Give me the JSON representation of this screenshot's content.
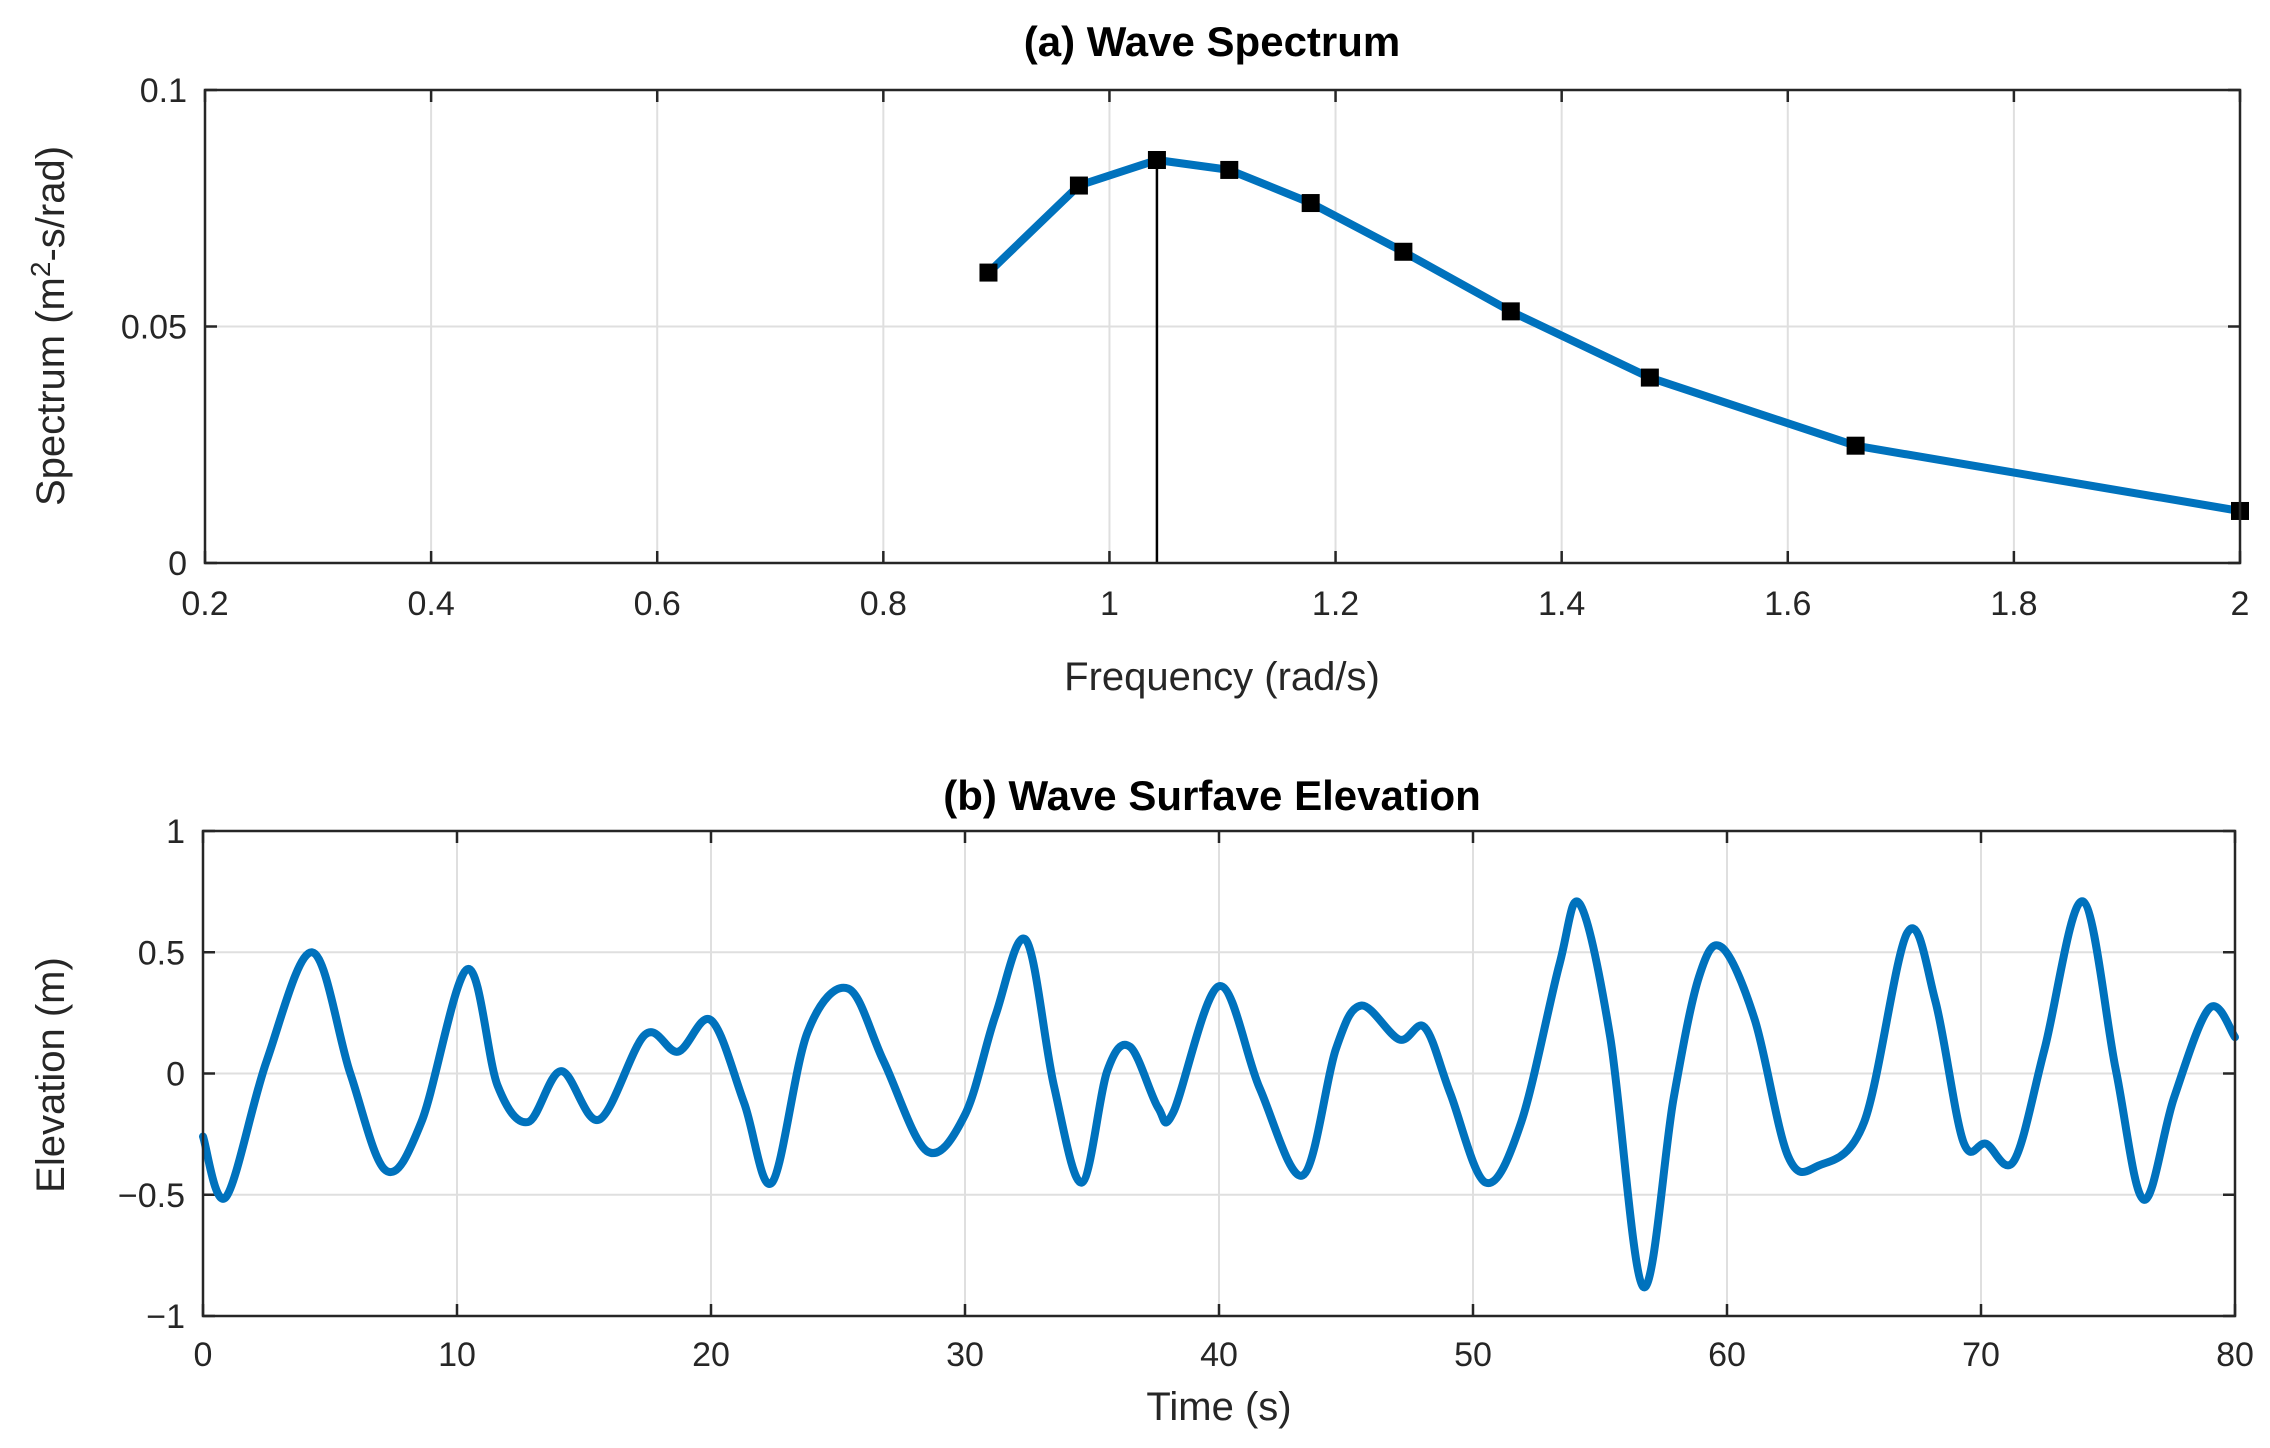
{
  "chart_data": [
    {
      "type": "line",
      "title": "(a) Wave Spectrum",
      "xlabel": "Frequency (rad/s)",
      "ylabel": "Spectrum (m²-s/rad)",
      "xlim": [
        0.2,
        2
      ],
      "ylim": [
        0,
        0.1
      ],
      "xticks": [
        "0.2",
        "0.4",
        "0.6",
        "0.8",
        "1",
        "1.2",
        "1.4",
        "1.6",
        "1.8",
        "2"
      ],
      "yticks": [
        "0",
        "0.05",
        "0.1"
      ],
      "grid": true,
      "series": [
        {
          "x": [
            0.893,
            0.973,
            1.042,
            1.106,
            1.178,
            1.26,
            1.355,
            1.478,
            1.66,
            2.0
          ],
          "y": [
            0.0614,
            0.0798,
            0.0852,
            0.0831,
            0.0761,
            0.0658,
            0.0532,
            0.0392,
            0.0248,
            0.011
          ],
          "marker": "square",
          "color": "#0072BD"
        }
      ],
      "peak_line": {
        "x": 1.042,
        "y": 0.0852
      }
    },
    {
      "type": "line",
      "title": "(b) Wave Surfave Elevation",
      "xlabel": "Time (s)",
      "ylabel": "Elevation (m)",
      "xlim": [
        0,
        80
      ],
      "ylim": [
        -1,
        1
      ],
      "xticks": [
        "0",
        "10",
        "20",
        "30",
        "40",
        "50",
        "60",
        "70",
        "80"
      ],
      "yticks": [
        "−1",
        "−0.5",
        "0",
        "0.5",
        "1"
      ],
      "grid": true,
      "series": [
        {
          "color": "#0072BD",
          "x": [
            0,
            0.9,
            2.5,
            4.3,
            5.8,
            7.2,
            8.6,
            10.4,
            11.6,
            12.8,
            14.1,
            15.6,
            17.4,
            18.7,
            20.0,
            21.3,
            22.4,
            23.8,
            25.4,
            26.8,
            28.5,
            30.0,
            31.2,
            32.4,
            33.5,
            34.6,
            35.6,
            36.5,
            37.6,
            38.2,
            40.0,
            41.6,
            43.3,
            44.6,
            45.6,
            47.1,
            48.1,
            49.1,
            50.5,
            51.9,
            53.4,
            54.2,
            55.4,
            56.7,
            57.9,
            58.9,
            59.8,
            61.1,
            62.4,
            63.6,
            65.4,
            67.1,
            68.2,
            69.3,
            70.2,
            71.3,
            72.5,
            74.0,
            75.3,
            76.4,
            77.6,
            79.0,
            80.0
          ],
          "y": [
            -0.26,
            -0.51,
            0.05,
            0.5,
            0.0,
            -0.4,
            -0.2,
            0.43,
            -0.05,
            -0.2,
            0.01,
            -0.19,
            0.16,
            0.09,
            0.22,
            -0.12,
            -0.45,
            0.17,
            0.35,
            0.05,
            -0.32,
            -0.17,
            0.24,
            0.55,
            -0.05,
            -0.45,
            0.01,
            0.11,
            -0.14,
            -0.16,
            0.36,
            -0.06,
            -0.42,
            0.1,
            0.28,
            0.14,
            0.19,
            -0.08,
            -0.45,
            -0.2,
            0.45,
            0.7,
            0.15,
            -0.88,
            -0.1,
            0.4,
            0.52,
            0.22,
            -0.34,
            -0.38,
            -0.2,
            0.58,
            0.3,
            -0.28,
            -0.29,
            -0.36,
            0.1,
            0.71,
            0.02,
            -0.52,
            -0.1,
            0.27,
            0.15
          ]
        }
      ]
    }
  ]
}
